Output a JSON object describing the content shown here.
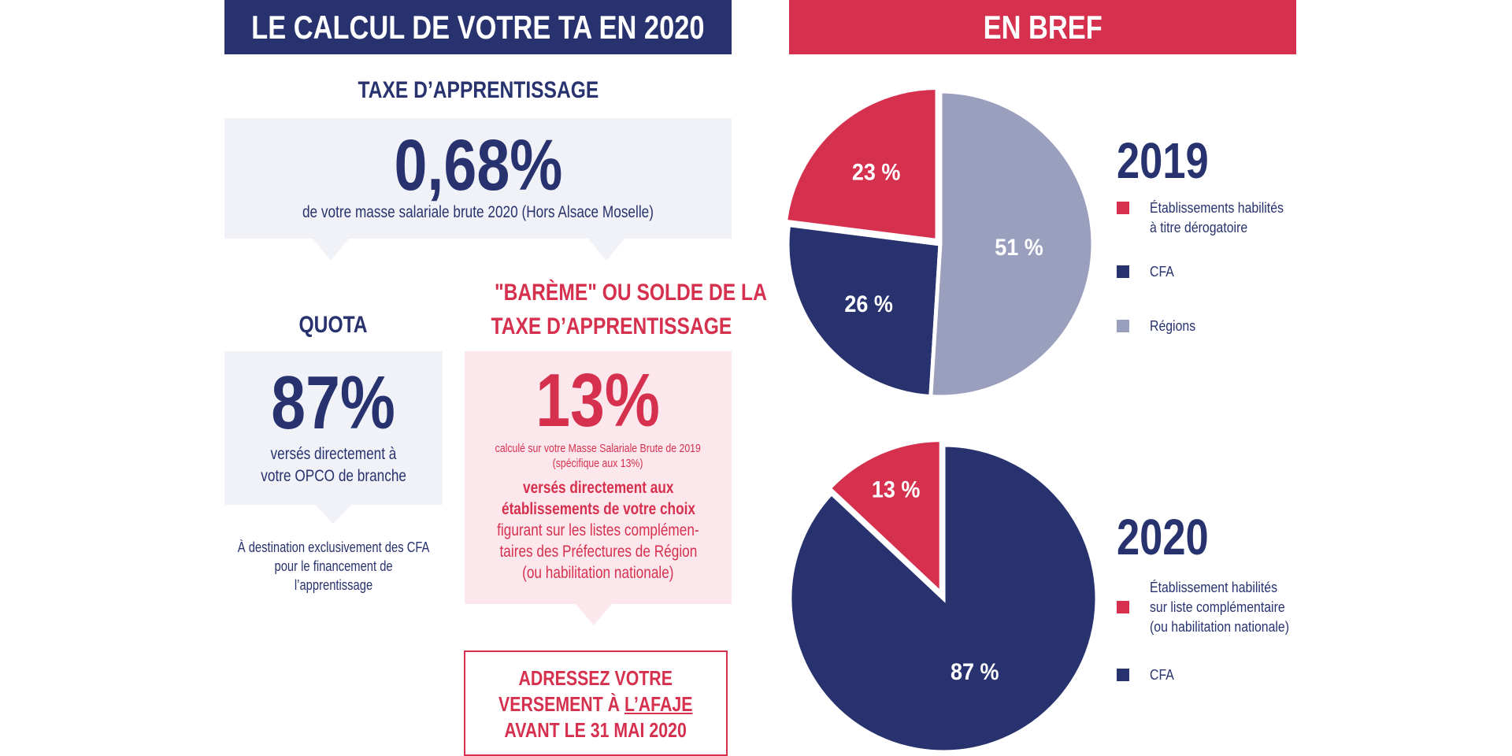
{
  "left_banner": "LE CALCUL DE VOTRE TA EN 2020",
  "right_banner": "EN BREF",
  "tax": {
    "heading": "TAXE D’APPRENTISSAGE",
    "value": "0,68%",
    "desc": "de votre masse salariale brute 2020 (Hors Alsace Moselle)"
  },
  "quota": {
    "heading": "QUOTA",
    "value": "87%",
    "desc_line1": "versés directement à",
    "desc_line2": "votre OPCO de branche",
    "note_line1": "À destination exclusivement des CFA",
    "note_line2": "pour le financement de",
    "note_line3": "l’apprentissage"
  },
  "bareme": {
    "heading_line1": "\"BARÈME\" OU SOLDE DE LA",
    "heading_line2": "TAXE D’APPRENTISSAGE",
    "value": "13%",
    "small_line1": "calculé sur votre Masse Salariale Brute de 2019",
    "small_line2": "(spécifique aux 13%)",
    "desc_line1": "versés directement aux",
    "desc_line2": "établissements de votre choix",
    "desc_line3": "figurant sur les listes complémen-",
    "desc_line4": "taires des Préfectures de Région",
    "desc_line5": "(ou habilitation nationale)"
  },
  "cta": {
    "line1": "ADRESSEZ VOTRE",
    "line2_prefix": "VERSEMENT À ",
    "line2_link": "L’AFAJE",
    "line3": "AVANT LE 31 MAI 2020"
  },
  "colors": {
    "navy": "#27326e",
    "red": "#d6304f",
    "lavender": "#9b9fbe"
  },
  "chart_data": [
    {
      "type": "pie",
      "title": "2019",
      "slices": [
        {
          "label": "Établissements habilités à titre dérogatoire",
          "legend_line1": "Établissements habilités",
          "legend_line2": "à titre dérogatoire",
          "value": 23,
          "display": "23 %",
          "color": "#d6304f"
        },
        {
          "label": "CFA",
          "legend_line1": "CFA",
          "value": 26,
          "display": "26 %",
          "color": "#27326e"
        },
        {
          "label": "Régions",
          "legend_line1": "Régions",
          "value": 51,
          "display": "51 %",
          "color": "#9b9fbe"
        }
      ]
    },
    {
      "type": "pie",
      "title": "2020",
      "slices": [
        {
          "label": "Établissement habilités sur liste complémentaire (ou habilitation nationale)",
          "legend_line1": "Établissement habilités",
          "legend_line2": "sur liste complémentaire",
          "legend_line3": "(ou habilitation nationale)",
          "value": 13,
          "display": "13 %",
          "color": "#d6304f"
        },
        {
          "label": "CFA",
          "legend_line1": "CFA",
          "value": 87,
          "display": "87 %",
          "color": "#27326e"
        }
      ]
    }
  ]
}
